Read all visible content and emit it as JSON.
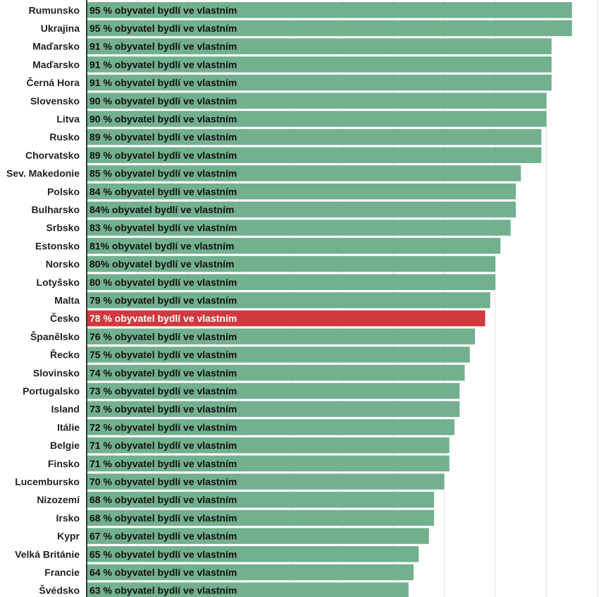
{
  "chart_data": {
    "type": "bar",
    "orientation": "horizontal",
    "xlim": [
      0,
      100
    ],
    "grid": true,
    "colors": {
      "default": "#72b08e",
      "highlight": "#d0393d",
      "label_default": "#111111",
      "label_highlight": "#ffffff"
    },
    "highlight": "Česko",
    "categories": [
      "Rumunsko",
      "Ukrajina",
      "Maďarsko",
      "Maďarsko",
      "Černá Hora",
      "Slovensko",
      "Litva",
      "Rusko",
      "Chorvatsko",
      "Sev. Makedonie",
      "Polsko",
      "Bulharsko",
      "Srbsko",
      "Estonsko",
      "Norsko",
      "Lotyšsko",
      "Malta",
      "Česko",
      "Španělsko",
      "Řecko",
      "Slovinsko",
      "Portugalsko",
      "Island",
      "Itálie",
      "Belgie",
      "Finsko",
      "Lucembursko",
      "Nizozemí",
      "Irsko",
      "Kypr",
      "Velká Británie",
      "Francie",
      "Švédsko"
    ],
    "values": [
      95,
      95,
      91,
      91,
      91,
      90,
      90,
      89,
      89,
      85,
      84,
      84,
      83,
      81,
      80,
      80,
      79,
      78,
      76,
      75,
      74,
      73,
      73,
      72,
      71,
      71,
      70,
      68,
      68,
      67,
      65,
      64,
      63
    ],
    "data_labels": [
      "95 % obyvatel bydlí ve vlastním",
      "95 % obyvatel bydlí ve vlastním",
      "91 % obyvatel bydlí ve vlastním",
      "91 % obyvatel bydlí ve vlastním",
      "91 % obyvatel bydlí ve vlastním",
      "90 % obyvatel bydlí ve vlastním",
      "90 % obyvatel bydlí ve vlastním",
      "89 % obyvatel bydlí ve vlastním",
      "89 % obyvatel bydlí ve vlastním",
      "85 % obyvatel bydlí ve vlastním",
      "84 % obyvatel bydlí ve vlastním",
      "84% obyvatel bydlí ve vlastním",
      "83 % obyvatel bydlí ve vlastním",
      "81% obyvatel bydlí ve vlastním",
      "80% obyvatel bydlí ve vlastním",
      "80 % obyvatel bydlí ve vlastním",
      "79 % obyvatel bydlí ve vlastním",
      "78 % obyvatel bydlí ve vlastním",
      "76 % obyvatel bydlí ve vlastním",
      "75 % obyvatel bydlí ve vlastním",
      "74 % obyvatel bydlí ve vlastním",
      "73 % obyvatel bydlí ve vlastním",
      "73 % obyvatel bydlí ve vlastním",
      "72 % obyvatel bydlí ve vlastním",
      "71 % obyvatel bydlí ve vlastním",
      "71 % obyvatel bydlí ve vlastním",
      "70 % obyvatel bydlí ve vlastním",
      "68 % obyvatel bydlí ve vlastním",
      "68 % obyvatel bydlí ve vlastním",
      "67 % obyvatel bydlí ve vlastním",
      "65 % obyvatel bydlí ve vlastním",
      "64 % obyvatel bydlí ve vlastním",
      "63 % obyvatel bydlí ve vlastním"
    ]
  }
}
